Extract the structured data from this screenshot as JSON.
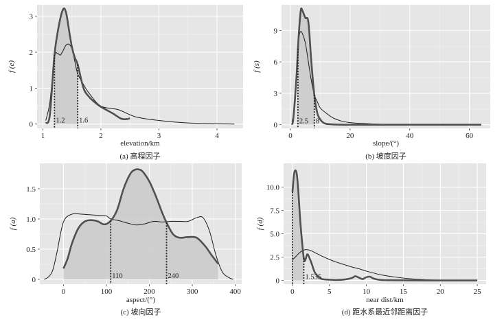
{
  "chart_data": [
    {
      "type": "line",
      "caption": "(a) 高程因子",
      "xlabel": "elevation/km",
      "ylabel": "f (e)",
      "xlim": [
        0.9,
        4.45
      ],
      "ylim": [
        -0.12,
        3.32
      ],
      "xticks": [
        1,
        2,
        3,
        4
      ],
      "yticks": [
        0,
        1,
        2,
        3
      ],
      "shade": {
        "from": 1.2,
        "to": 1.6
      },
      "thresholds": [
        {
          "x": 1.2,
          "y": 1.93,
          "label": "1.2"
        },
        {
          "x": 1.6,
          "y": 1.66,
          "label": "1.6"
        }
      ],
      "thick": {
        "x": [
          1.05,
          1.12,
          1.2,
          1.28,
          1.35,
          1.4,
          1.45,
          1.5,
          1.55,
          1.6,
          1.7,
          1.8,
          1.9,
          2.0,
          2.2,
          2.35,
          2.45,
          2.5
        ],
        "y": [
          0.02,
          0.25,
          1.93,
          2.78,
          3.2,
          3.1,
          2.62,
          2.15,
          1.85,
          1.66,
          1.0,
          0.75,
          0.6,
          0.48,
          0.3,
          0.15,
          0.14,
          0.16
        ]
      },
      "thin": {
        "x": [
          1.05,
          1.12,
          1.2,
          1.25,
          1.3,
          1.35,
          1.4,
          1.45,
          1.5,
          1.55,
          1.6,
          1.7,
          1.8,
          2.0,
          2.3,
          2.6,
          3.0,
          3.5,
          4.0,
          4.3
        ],
        "y": [
          0.1,
          0.6,
          1.85,
          1.97,
          1.92,
          2.05,
          2.2,
          2.22,
          2.1,
          1.75,
          1.4,
          1.1,
          0.85,
          0.5,
          0.4,
          0.2,
          0.1,
          0.03,
          0.01,
          0.0
        ]
      }
    },
    {
      "type": "line",
      "caption": "(b) 坡度因子",
      "xlabel": "slope/(°)",
      "ylabel": "f (s)",
      "xlim": [
        -3,
        67
      ],
      "ylim": [
        -0.35,
        11.45
      ],
      "xticks": [
        0,
        20,
        40,
        60
      ],
      "yticks": [
        0,
        3,
        6,
        9
      ],
      "shade": {
        "from": 2.5,
        "to": 8
      },
      "thresholds": [
        {
          "x": 2.5,
          "y": 7.25,
          "label": "2.5"
        },
        {
          "x": 8,
          "y": 2.85,
          "label": "8"
        }
      ],
      "thick": {
        "x": [
          0.5,
          1,
          2,
          2.5,
          3,
          3.5,
          4,
          5,
          6,
          7,
          8,
          9,
          10,
          11,
          12,
          14,
          16,
          20,
          30,
          64
        ],
        "y": [
          0,
          0.7,
          4.5,
          7.25,
          9.5,
          11.0,
          10.9,
          10.2,
          9.8,
          6.0,
          2.85,
          1.1,
          0.5,
          0.2,
          0.08,
          0.03,
          0.01,
          0.0,
          0.0,
          0.0
        ]
      },
      "thin": {
        "x": [
          0.5,
          1,
          1.5,
          2,
          2.5,
          3,
          3.5,
          4,
          5,
          6,
          7,
          8,
          9,
          10,
          12,
          15,
          20,
          30,
          40,
          64
        ],
        "y": [
          0.3,
          1.0,
          2.8,
          5.0,
          7.25,
          8.6,
          8.9,
          8.7,
          7.8,
          6.0,
          4.2,
          2.85,
          2.2,
          1.6,
          1.1,
          0.55,
          0.2,
          0.05,
          0.01,
          0.0
        ]
      }
    },
    {
      "type": "line",
      "caption": "(c) 坡向因子",
      "xlabel": "aspect/(°)",
      "ylabel": "f (a)",
      "xlim": [
        -55,
        415
      ],
      "ylim": [
        -0.08,
        1.92
      ],
      "xticks": [
        0,
        100,
        200,
        300,
        400
      ],
      "yticks": [
        0,
        0.5,
        1.0,
        1.5
      ],
      "yticklabels": [
        "0",
        "0.5",
        "1.0",
        "1.5"
      ],
      "shade": {
        "from": 0,
        "to": 360
      },
      "thresholds": [
        {
          "x": 110,
          "y": 0.97,
          "label": "110"
        },
        {
          "x": 240,
          "y": 0.94,
          "label": "240"
        }
      ],
      "thick": {
        "x": [
          0,
          10,
          20,
          35,
          50,
          65,
          80,
          95,
          110,
          125,
          140,
          155,
          165,
          175,
          185,
          200,
          215,
          230,
          240,
          255,
          270,
          290,
          310,
          330,
          345,
          360
        ],
        "y": [
          0.18,
          0.35,
          0.6,
          0.85,
          0.96,
          0.98,
          0.96,
          0.91,
          0.97,
          1.15,
          1.5,
          1.74,
          1.81,
          1.82,
          1.78,
          1.62,
          1.38,
          1.1,
          0.94,
          0.75,
          0.69,
          0.7,
          0.69,
          0.55,
          0.4,
          0.26
        ]
      },
      "thin": {
        "x": [
          -45,
          -35,
          -25,
          -15,
          0,
          20,
          40,
          60,
          80,
          100,
          110,
          130,
          150,
          170,
          190,
          210,
          230,
          250,
          270,
          290,
          310,
          325,
          340,
          355,
          370,
          385,
          395
        ],
        "y": [
          0.0,
          0.04,
          0.15,
          0.45,
          0.95,
          1.08,
          1.08,
          1.07,
          1.06,
          1.05,
          1.0,
          0.97,
          0.93,
          0.9,
          0.92,
          0.96,
          0.95,
          0.96,
          0.96,
          0.96,
          1.02,
          1.02,
          0.8,
          0.4,
          0.12,
          0.03,
          0.0
        ]
      }
    },
    {
      "type": "line",
      "caption": "(d) 距水系最近邻距离因子",
      "xlabel": "near dist/km",
      "ylabel": "f (d)",
      "xlim": [
        -1.2,
        26.2
      ],
      "ylim": [
        -0.4,
        12.55
      ],
      "xticks": [
        0,
        5,
        10,
        15,
        20,
        25
      ],
      "yticks": [
        0,
        2.5,
        5.0,
        7.5,
        10.0
      ],
      "yticklabels": [
        "0",
        "2.5",
        "5.0",
        "7.5",
        "10.0"
      ],
      "shade": {
        "from": 0,
        "to": 1.535
      },
      "thresholds": [
        {
          "x": 0,
          "y": 9.5,
          "label": ""
        },
        {
          "x": 1.535,
          "y": 2.4,
          "label": "1.535"
        }
      ],
      "thick": {
        "x": [
          0,
          0.2,
          0.4,
          0.6,
          0.8,
          1.0,
          1.2,
          1.4,
          1.535,
          1.7,
          2.0,
          2.3,
          2.6,
          3.0,
          3.5,
          4.0,
          5.0,
          6.0,
          7.0,
          8.0,
          8.5,
          9.0,
          9.5,
          10.0,
          10.5,
          11.0,
          12.0,
          14.0,
          18.0,
          25.0
        ],
        "y": [
          9.5,
          11.3,
          11.8,
          11.3,
          9.5,
          7.0,
          5.0,
          3.3,
          2.4,
          2.1,
          2.8,
          2.4,
          1.8,
          0.9,
          0.4,
          0.15,
          0.08,
          0.05,
          0.1,
          0.25,
          0.45,
          0.3,
          0.15,
          0.35,
          0.4,
          0.2,
          0.05,
          0.02,
          0.0,
          0.0
        ]
      },
      "thin": {
        "x": [
          0,
          0.5,
          1.0,
          1.535,
          2.0,
          2.5,
          3.0,
          4.0,
          5.0,
          6.0,
          7.0,
          8.0,
          9.0,
          10.0,
          12.0,
          14.0,
          16.0,
          18.0,
          20.0,
          22.0,
          25.0
        ],
        "y": [
          2.2,
          2.6,
          3.0,
          3.25,
          3.3,
          3.2,
          3.0,
          2.6,
          2.25,
          1.95,
          1.7,
          1.45,
          1.25,
          1.0,
          0.6,
          0.35,
          0.18,
          0.08,
          0.03,
          0.01,
          0.0
        ]
      }
    }
  ]
}
